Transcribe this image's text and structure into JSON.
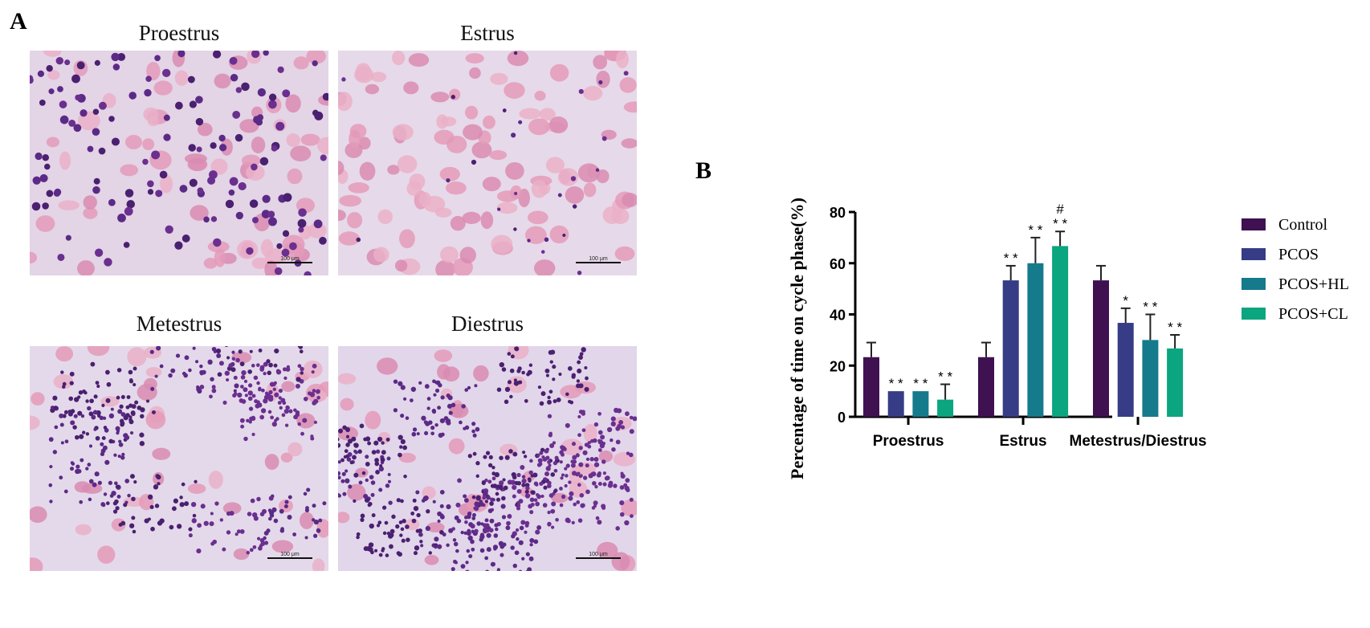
{
  "panel_a": {
    "letter": "A",
    "images": [
      {
        "title": "Proestrus",
        "scale_bar": "100 μm",
        "bg": "#e3d4e6",
        "kind": "proestrus"
      },
      {
        "title": "Estrus",
        "scale_bar": "100 μm",
        "bg": "#e6d9e9",
        "kind": "estrus"
      },
      {
        "title": "Metestrus",
        "scale_bar": "100 μm",
        "bg": "#e4d9ea",
        "kind": "metestrus"
      },
      {
        "title": "Diestrus",
        "scale_bar": "100 μm",
        "bg": "#e2d6ea",
        "kind": "diestrus"
      }
    ]
  },
  "panel_b": {
    "letter": "B"
  },
  "chart_data": {
    "type": "bar",
    "title": "",
    "xlabel": "",
    "ylabel": "Percentage of time on cycle phase(%)",
    "ylim": [
      0,
      80
    ],
    "yticks": [
      "0",
      "20",
      "40",
      "60",
      "80"
    ],
    "grid": false,
    "legend_position": "right",
    "categories": [
      "Proestrus",
      "Estrus",
      "Metestrus/Diestrus"
    ],
    "series": [
      {
        "name": "Control",
        "color": "#3f1151",
        "values": [
          23.3,
          23.3,
          53.3
        ],
        "error": [
          5.7,
          5.7,
          5.7
        ],
        "sig": [
          "",
          "",
          ""
        ]
      },
      {
        "name": "PCOS",
        "color": "#363c86",
        "values": [
          10,
          53.3,
          36.7
        ],
        "error": [
          0,
          5.7,
          5.7
        ],
        "sig": [
          "**",
          "**",
          "*"
        ]
      },
      {
        "name": "PCOS+HL",
        "color": "#157a8c",
        "values": [
          10,
          60,
          30
        ],
        "error": [
          0,
          10,
          10
        ],
        "sig": [
          "**",
          "**",
          "**"
        ]
      },
      {
        "name": "PCOS+CL",
        "color": "#0ba57f",
        "values": [
          6.7,
          66.7,
          26.7
        ],
        "error": [
          6,
          5.7,
          5.3
        ],
        "sig": [
          "**",
          "#\n**",
          "**"
        ]
      }
    ]
  }
}
